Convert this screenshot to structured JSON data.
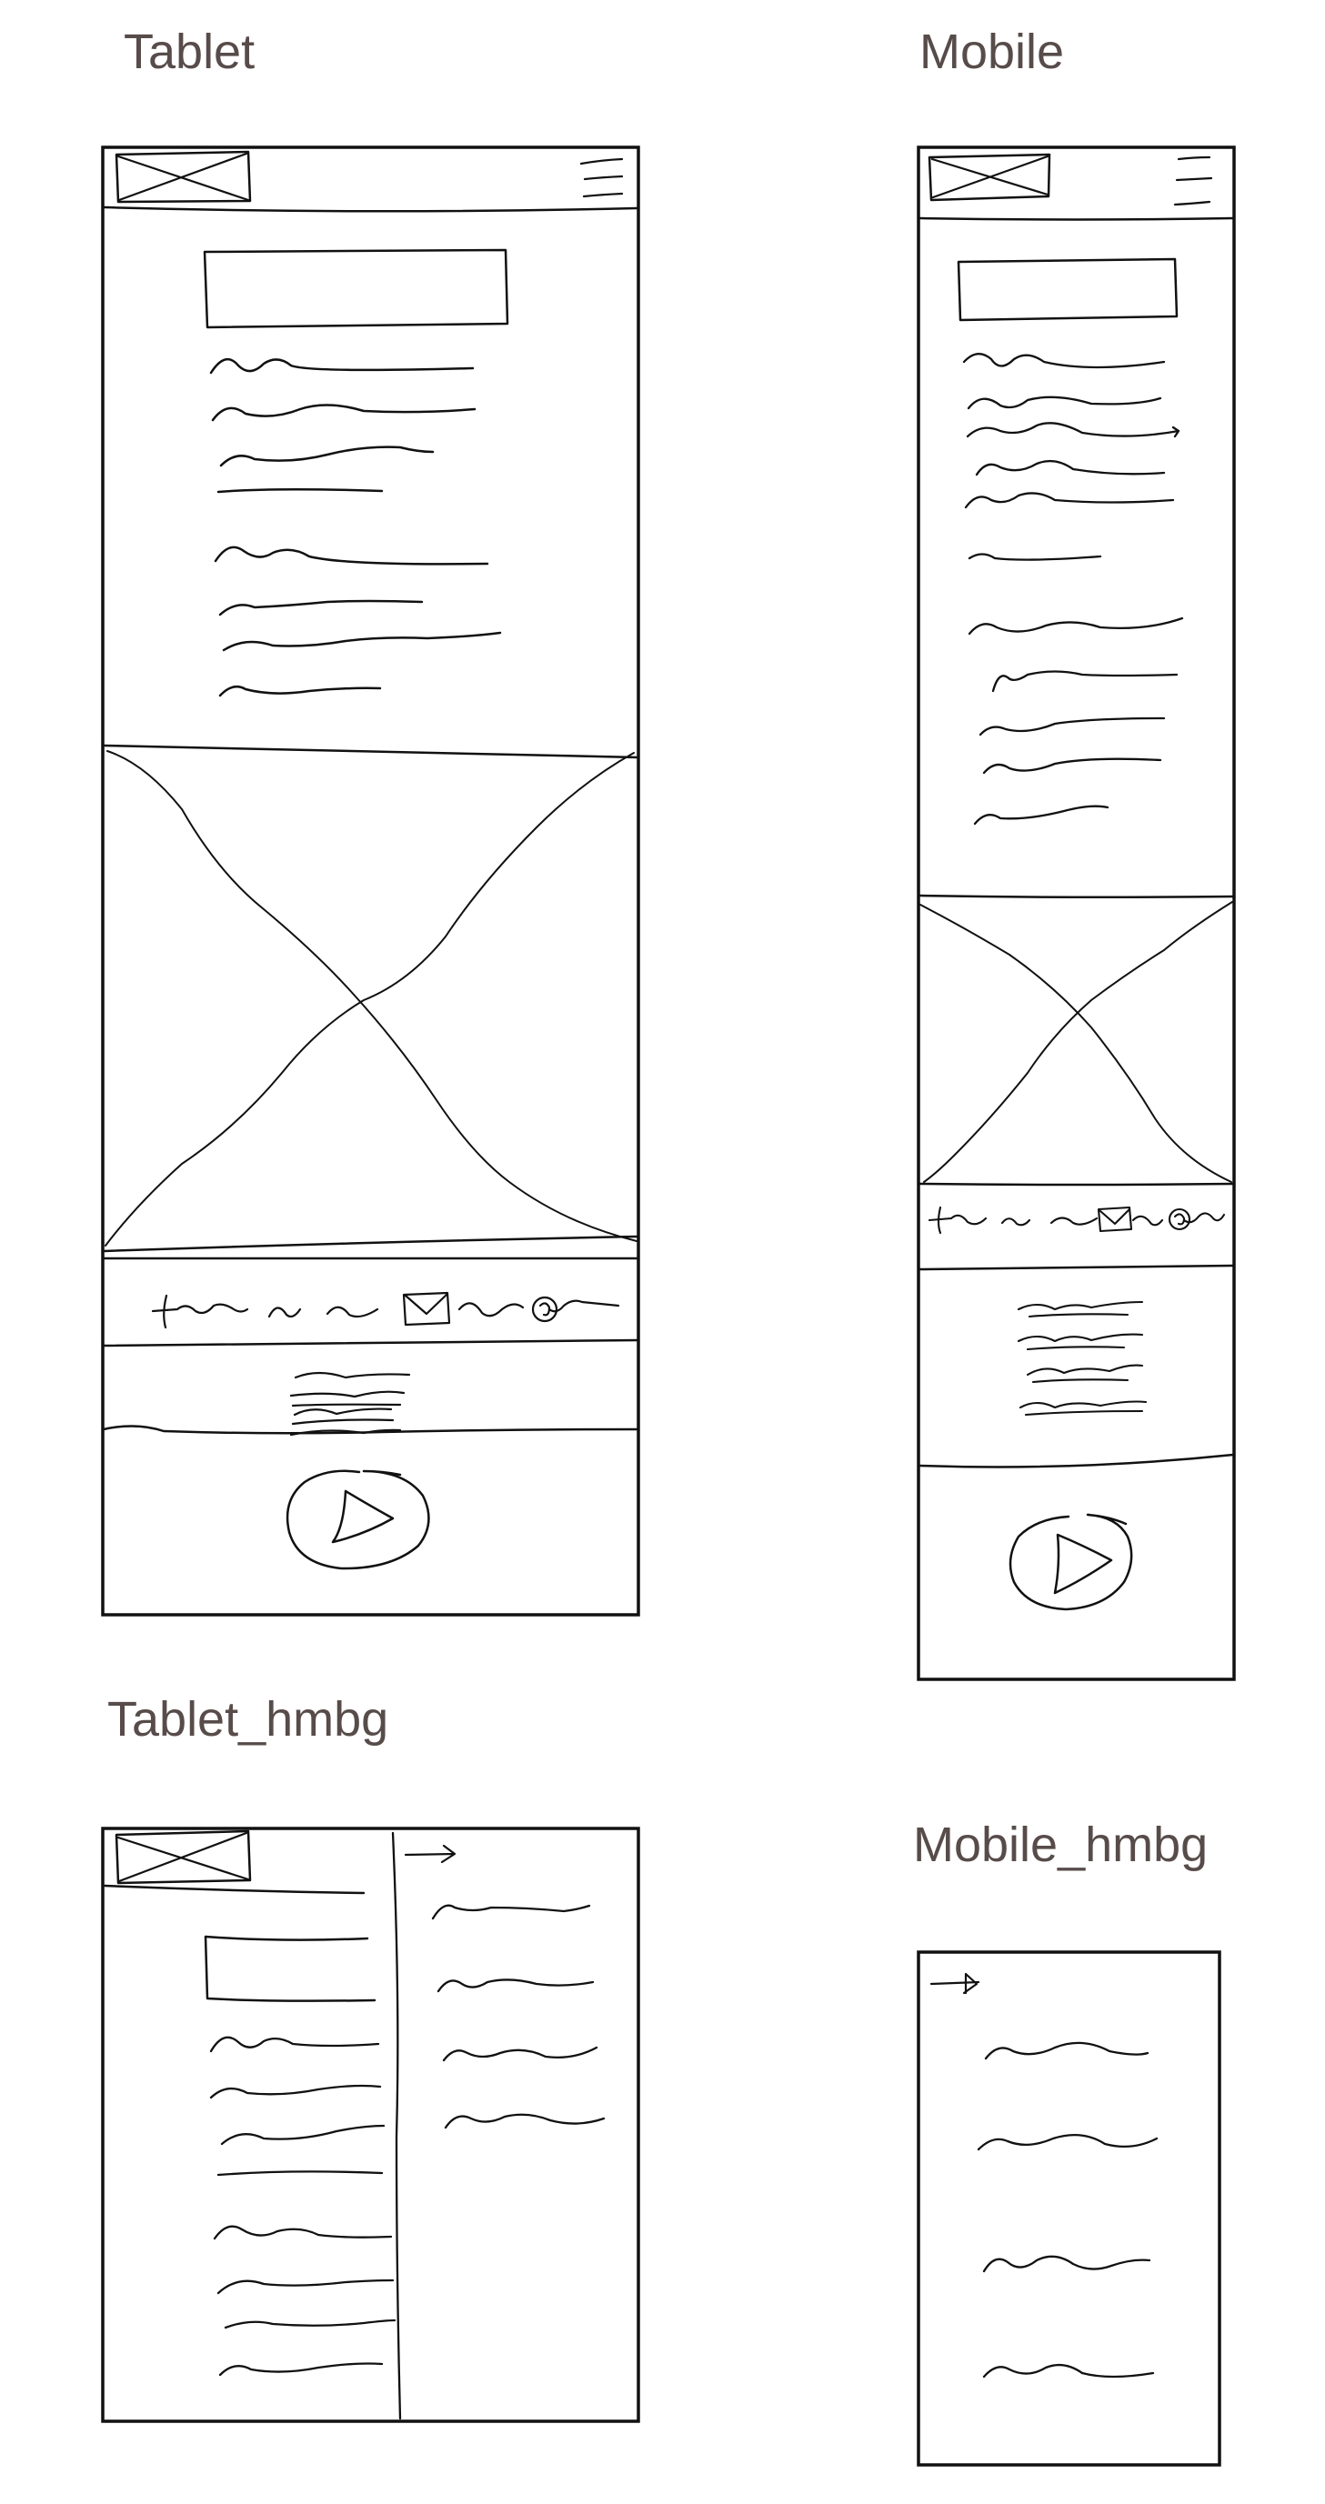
{
  "titles": {
    "tablet": "Tablet",
    "mobile": "Mobile",
    "tablet_hmbg": "Tablet_hmbg",
    "mobile_hmbg": "Mobile_hmbg"
  },
  "colors": {
    "title_text": "#574c4a",
    "sketch_stroke": "#111111",
    "background": "#ffffff"
  },
  "icons": [
    "logo-placeholder-icon",
    "hamburger-menu-icon",
    "image-placeholder-icon",
    "mail-icon",
    "at-sign-icon",
    "play-button-icon",
    "back-arrow-icon"
  ]
}
